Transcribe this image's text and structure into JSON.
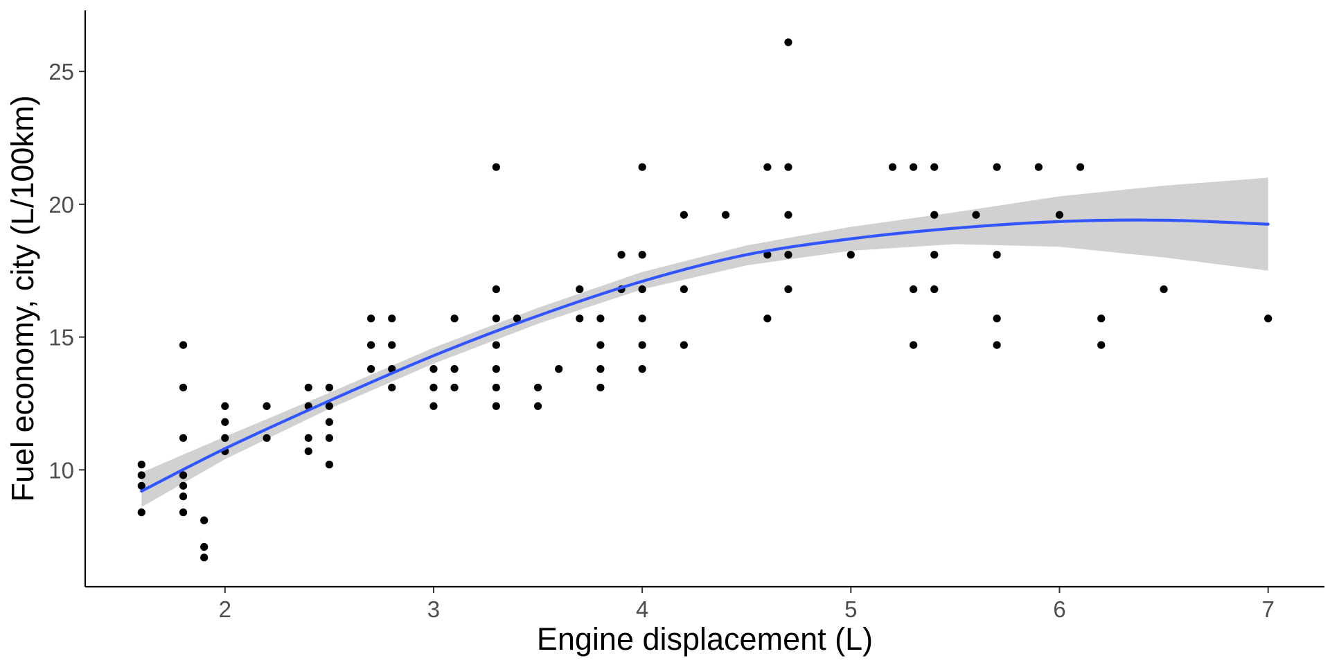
{
  "chart_data": {
    "type": "scatter",
    "title": "",
    "xlabel": "Engine displacement (L)",
    "ylabel": "Fuel economy, city (L/100km)",
    "xlim": [
      1.33,
      7.27
    ],
    "ylim": [
      5.6,
      27.3
    ],
    "x_ticks": [
      2,
      3,
      4,
      5,
      6,
      7
    ],
    "y_ticks": [
      10,
      15,
      20,
      25
    ],
    "grid": false,
    "legend": "none",
    "colors": {
      "points": "#000000",
      "fit_line": "#3355ff",
      "confidence_band": "#cccccc",
      "axis": "#000000",
      "tick_label": "#4d4d4d"
    },
    "points": [
      [
        1.6,
        8.4
      ],
      [
        1.6,
        9.4
      ],
      [
        1.6,
        9.8
      ],
      [
        1.6,
        10.2
      ],
      [
        1.8,
        8.4
      ],
      [
        1.8,
        9.0
      ],
      [
        1.8,
        9.4
      ],
      [
        1.8,
        9.8
      ],
      [
        1.8,
        11.2
      ],
      [
        1.8,
        13.1
      ],
      [
        1.8,
        14.7
      ],
      [
        1.9,
        6.7
      ],
      [
        1.9,
        7.1
      ],
      [
        1.9,
        8.1
      ],
      [
        2.0,
        10.7
      ],
      [
        2.0,
        11.2
      ],
      [
        2.0,
        11.8
      ],
      [
        2.0,
        12.4
      ],
      [
        2.2,
        11.2
      ],
      [
        2.2,
        12.4
      ],
      [
        2.4,
        10.7
      ],
      [
        2.4,
        11.2
      ],
      [
        2.4,
        12.4
      ],
      [
        2.4,
        13.1
      ],
      [
        2.5,
        10.2
      ],
      [
        2.5,
        11.2
      ],
      [
        2.5,
        11.8
      ],
      [
        2.5,
        12.4
      ],
      [
        2.5,
        13.1
      ],
      [
        2.7,
        13.8
      ],
      [
        2.7,
        14.7
      ],
      [
        2.7,
        15.7
      ],
      [
        2.8,
        13.1
      ],
      [
        2.8,
        13.8
      ],
      [
        2.8,
        14.7
      ],
      [
        2.8,
        15.7
      ],
      [
        3.0,
        12.4
      ],
      [
        3.0,
        13.1
      ],
      [
        3.0,
        13.8
      ],
      [
        3.1,
        13.1
      ],
      [
        3.1,
        13.8
      ],
      [
        3.1,
        15.7
      ],
      [
        3.3,
        12.4
      ],
      [
        3.3,
        13.1
      ],
      [
        3.3,
        13.8
      ],
      [
        3.3,
        14.7
      ],
      [
        3.3,
        15.7
      ],
      [
        3.3,
        16.8
      ],
      [
        3.3,
        21.4
      ],
      [
        3.4,
        15.7
      ],
      [
        3.5,
        12.4
      ],
      [
        3.5,
        13.1
      ],
      [
        3.6,
        13.8
      ],
      [
        3.7,
        15.7
      ],
      [
        3.7,
        16.8
      ],
      [
        3.8,
        13.1
      ],
      [
        3.8,
        13.8
      ],
      [
        3.8,
        14.7
      ],
      [
        3.8,
        15.7
      ],
      [
        3.9,
        16.8
      ],
      [
        3.9,
        18.1
      ],
      [
        4.0,
        13.8
      ],
      [
        4.0,
        14.7
      ],
      [
        4.0,
        15.7
      ],
      [
        4.0,
        16.8
      ],
      [
        4.0,
        18.1
      ],
      [
        4.0,
        21.4
      ],
      [
        4.2,
        14.7
      ],
      [
        4.2,
        16.8
      ],
      [
        4.2,
        19.6
      ],
      [
        4.4,
        19.6
      ],
      [
        4.6,
        15.7
      ],
      [
        4.6,
        18.1
      ],
      [
        4.6,
        21.4
      ],
      [
        4.7,
        16.8
      ],
      [
        4.7,
        18.1
      ],
      [
        4.7,
        19.6
      ],
      [
        4.7,
        21.4
      ],
      [
        4.7,
        26.1
      ],
      [
        5.0,
        18.1
      ],
      [
        5.2,
        21.4
      ],
      [
        5.3,
        14.7
      ],
      [
        5.3,
        16.8
      ],
      [
        5.3,
        21.4
      ],
      [
        5.4,
        16.8
      ],
      [
        5.4,
        18.1
      ],
      [
        5.4,
        19.6
      ],
      [
        5.4,
        21.4
      ],
      [
        5.6,
        19.6
      ],
      [
        5.7,
        14.7
      ],
      [
        5.7,
        15.7
      ],
      [
        5.7,
        18.1
      ],
      [
        5.7,
        21.4
      ],
      [
        5.9,
        21.4
      ],
      [
        6.0,
        19.6
      ],
      [
        6.1,
        21.4
      ],
      [
        6.2,
        14.7
      ],
      [
        6.2,
        15.7
      ],
      [
        6.5,
        16.8
      ],
      [
        7.0,
        15.7
      ]
    ],
    "fit": {
      "method": "quadratic smooth with confidence band",
      "x": [
        1.6,
        2.0,
        2.5,
        3.0,
        3.5,
        4.0,
        4.5,
        5.0,
        5.5,
        6.0,
        6.5,
        7.0
      ],
      "y": [
        9.2,
        10.8,
        12.6,
        14.3,
        15.8,
        17.1,
        18.1,
        18.7,
        19.1,
        19.35,
        19.4,
        19.25
      ],
      "lower": [
        8.6,
        10.4,
        12.3,
        14.0,
        15.5,
        16.8,
        17.7,
        18.25,
        18.5,
        18.4,
        18.0,
        17.5
      ],
      "upper": [
        9.9,
        11.25,
        12.9,
        14.6,
        16.1,
        17.45,
        18.45,
        19.15,
        19.7,
        20.3,
        20.7,
        21.0
      ]
    }
  }
}
